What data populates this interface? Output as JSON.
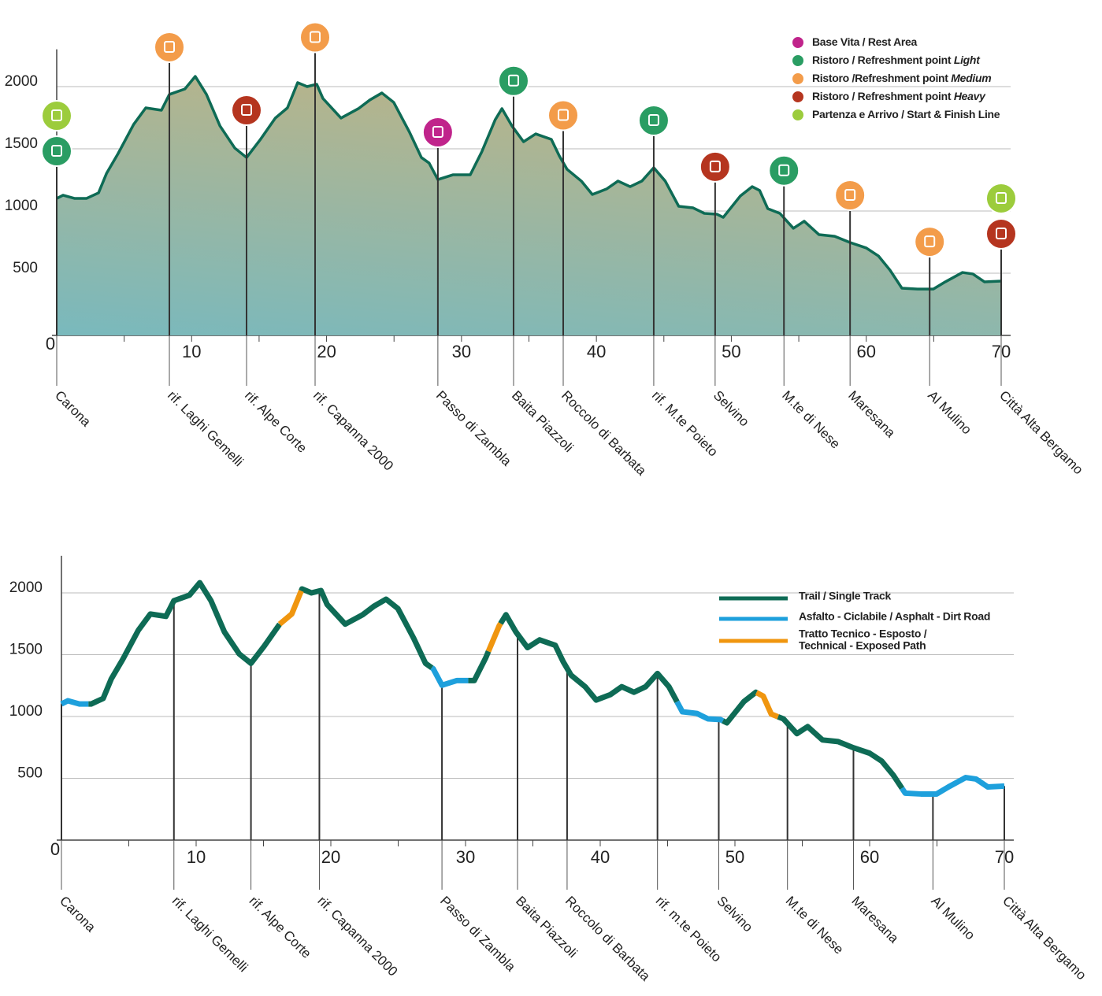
{
  "chart_data": [
    {
      "type": "area",
      "x": [
        0,
        0.47,
        1.34,
        2.2,
        3.1,
        3.7,
        4.55,
        5.7,
        6.6,
        7.76,
        8.35,
        9.5,
        10.27,
        11.1,
        12.1,
        13.2,
        14.07,
        15.06,
        16.2,
        17.1,
        17.86,
        18.56,
        19.27,
        19.73,
        21.07,
        22.36,
        23.2,
        24.1,
        24.98,
        26.15,
        27.03,
        27.6,
        28.25,
        29.36,
        30.65,
        31.5,
        32.5,
        33.0,
        33.74,
        34.6,
        35.5,
        36.66,
        37.25,
        37.83,
        38.88,
        39.7,
        40.75,
        41.6,
        42.5,
        43.37,
        44.25,
        45.1,
        46.1,
        47.17,
        48.0,
        48.92,
        49.4,
        50.66,
        51.55,
        52.1,
        52.7,
        53.6,
        54.6,
        55.4,
        56.5,
        57.66,
        58.8,
        60.0,
        60.9,
        61.76,
        62.64,
        63.8,
        64.97,
        65.85,
        67.13,
        67.9,
        68.77,
        70
      ],
      "values": [
        1101,
        1127,
        1101,
        1101,
        1146,
        1304,
        1462,
        1696,
        1829,
        1810,
        1937,
        1981,
        2082,
        1937,
        1684,
        1506,
        1430,
        1570,
        1747,
        1829,
        2032,
        2000,
        2019,
        1905,
        1747,
        1823,
        1892,
        1949,
        1873,
        1633,
        1430,
        1386,
        1253,
        1291,
        1291,
        1475,
        1734,
        1823,
        1684,
        1557,
        1620,
        1576,
        1443,
        1335,
        1241,
        1133,
        1177,
        1241,
        1196,
        1241,
        1348,
        1241,
        1038,
        1025,
        981,
        975,
        949,
        1120,
        1196,
        1165,
        1019,
        981,
        861,
        918,
        810,
        797,
        747,
        703,
        639,
        525,
        380,
        373,
        373,
        430,
        506,
        494,
        430,
        437
      ],
      "color": "#0e6b55",
      "xlim": [
        0,
        70
      ],
      "ylim": [
        0,
        2300
      ],
      "xticks": [
        0,
        10,
        20,
        30,
        40,
        50,
        60,
        70
      ],
      "xminor": [
        5,
        15,
        25,
        35,
        45,
        55,
        65
      ],
      "yticks": [
        500,
        1000,
        1500,
        2000
      ],
      "grid": true,
      "categories": [
        "Carona",
        "rif. Laghi Gemelli",
        "rif. Alpe Corte",
        "rif. Capanna 2000",
        "Passo di Zambla",
        "Baita Piazzoli",
        "Roccolo di Barbata",
        "rif. M.te Poieto",
        "Selvino",
        "M.te di Nese",
        "Maresana",
        "Al Mulino",
        "Città Alta Bergamo"
      ],
      "waypoint_km": [
        0,
        8.35,
        14.07,
        19.15,
        28.25,
        33.86,
        37.54,
        44.25,
        48.8,
        53.9,
        58.8,
        64.7,
        70
      ],
      "waypoint_icons": [
        [
          4,
          1
        ],
        [
          2
        ],
        [
          3
        ],
        [
          2
        ],
        [
          0
        ],
        [
          1
        ],
        [
          2
        ],
        [
          1
        ],
        [
          3
        ],
        [
          1
        ],
        [
          2
        ],
        [
          2
        ],
        [
          4,
          3
        ]
      ],
      "legend": [
        {
          "name": "Base Vita / Rest Area",
          "color": "#c0248b"
        },
        {
          "name": "Ristoro / Refreshment point ",
          "emphasis": "Light",
          "color": "#2a9d63"
        },
        {
          "name": "Ristoro /Refreshment point ",
          "emphasis": "Medium",
          "color": "#f39c4a"
        },
        {
          "name": "Ristoro / Refreshment point ",
          "emphasis": "Heavy",
          "color": "#b5351f"
        },
        {
          "name": "Partenza e Arrivo / Start & Finish Line",
          "color": "#9ccc3c"
        }
      ]
    },
    {
      "type": "line",
      "xlim": [
        0,
        70
      ],
      "ylim": [
        0,
        2300
      ],
      "xticks": [
        0,
        10,
        20,
        30,
        40,
        50,
        60,
        70
      ],
      "xminor": [
        5,
        15,
        25,
        35,
        45,
        55,
        65
      ],
      "yticks": [
        500,
        1000,
        1500,
        2000
      ],
      "grid": true,
      "categories": [
        "Carona",
        "rif. Laghi Gemelli",
        "rif. Alpe Corte",
        "rif. Capanna 2000",
        "Passo di Zambla",
        "Baita Piazzoli",
        "Roccolo di Barbata",
        "rif. m.te Poieto",
        "Selvino",
        "M.te di Nese",
        "Maresana",
        "Al Mulino",
        "Città Alta Bergamo"
      ],
      "waypoint_km": [
        0,
        8.35,
        14.07,
        19.15,
        28.25,
        33.86,
        37.54,
        44.25,
        48.8,
        53.9,
        58.8,
        64.7,
        70
      ],
      "series": [
        {
          "name": [
            "Trail / Single Track"
          ],
          "color": "#0e6b55",
          "segments": [
            [
              2,
              16.2
            ],
            [
              17.8,
              27.5
            ],
            [
              30.2,
              31.7
            ],
            [
              32.6,
              45.7
            ],
            [
              49.1,
              51.6
            ],
            [
              53.2,
              62.4
            ]
          ]
        },
        {
          "name": [
            "Asfalto - Ciclabile / Asphalt - Dirt Road"
          ],
          "color": "#1ea0dc",
          "segments": [
            [
              0,
              2
            ],
            [
              27.5,
              30.2
            ],
            [
              45.7,
              49.1
            ],
            [
              62.4,
              70
            ]
          ]
        },
        {
          "name": [
            "Tratto Tecnico - Esposto /",
            "Technical - Exposed Path"
          ],
          "color": "#f0960f",
          "segments": [
            [
              16.2,
              17.8
            ],
            [
              31.7,
              32.6
            ],
            [
              51.6,
              53.2
            ]
          ]
        }
      ]
    }
  ]
}
